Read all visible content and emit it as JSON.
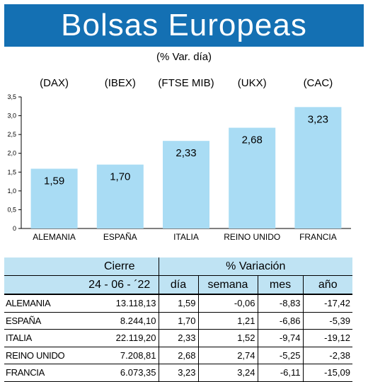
{
  "header": {
    "title": "Bolsas Europeas",
    "subtitle": "(% Var. día)"
  },
  "colors": {
    "banner": "#1470b3",
    "bar": "#a9dcf4",
    "table_header": "#bfe3f3"
  },
  "chart_data": {
    "type": "bar",
    "title": "",
    "categories": [
      "ALEMANIA",
      "ESPAÑA",
      "ITALIA",
      "REINO UNIDO",
      "FRANCIA"
    ],
    "indices": [
      "(DAX)",
      "(IBEX)",
      "(FTSE MIB)",
      "(UKX)",
      "(CAC)"
    ],
    "values": [
      1.59,
      1.7,
      2.33,
      2.68,
      3.23
    ],
    "value_labels": [
      "1,59",
      "1,70",
      "2,33",
      "2,68",
      "3,23"
    ],
    "ylim": [
      0,
      3.5
    ],
    "yticks": [
      "0",
      "0,5",
      "1,0",
      "1,5",
      "2,0",
      "2,5",
      "3,0",
      "3,5"
    ],
    "grid": false,
    "xlabel": "",
    "ylabel": ""
  },
  "table": {
    "group_headers": {
      "cierre": "Cierre",
      "variacion": "% Variación"
    },
    "columns": {
      "date": "24 - 06 - ´22",
      "dia": "día",
      "semana": "semana",
      "mes": "mes",
      "anio": "año"
    },
    "rows": [
      {
        "country": "ALEMANIA",
        "cierre": "13.118,13",
        "dia": "1,59",
        "semana": "-0,06",
        "mes": "-8,83",
        "anio": "-17,42"
      },
      {
        "country": "ESPAÑA",
        "cierre": "8.244,10",
        "dia": "1,70",
        "semana": "1,21",
        "mes": "-6,86",
        "anio": "-5,39"
      },
      {
        "country": "ITALIA",
        "cierre": "22.119,20",
        "dia": "2,33",
        "semana": "1,52",
        "mes": "-9,74",
        "anio": "-19,12"
      },
      {
        "country": "REINO UNIDO",
        "cierre": "7.208,81",
        "dia": "2,68",
        "semana": "2,74",
        "mes": "-5,25",
        "anio": "-2,38"
      },
      {
        "country": "FRANCIA",
        "cierre": "6.073,35",
        "dia": "3,23",
        "semana": "3,24",
        "mes": "-6,11",
        "anio": "-15,09"
      }
    ]
  }
}
